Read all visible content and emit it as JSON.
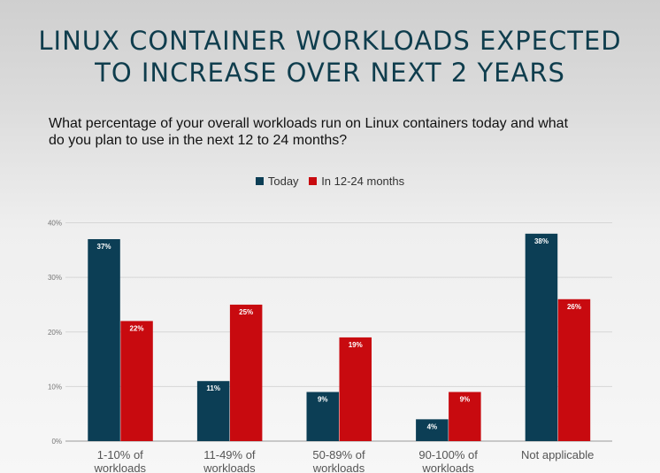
{
  "title": {
    "line1": "LINUX CONTAINER WORKLOADS EXPECTED",
    "line2": "TO INCREASE OVER NEXT 2 YEARS"
  },
  "subtitle": {
    "line1": "What percentage of your overall workloads run on Linux containers today and what",
    "line2": "do you plan to use in the next 12 to 24 months?"
  },
  "colors": {
    "today": "#0c3e55",
    "future": "#c80a0f",
    "title": "#0f3d4d"
  },
  "chart_data": {
    "type": "bar",
    "categories": [
      [
        "1-10% of",
        "workloads"
      ],
      [
        "11-49% of",
        "workloads"
      ],
      [
        "50-89% of",
        "workloads"
      ],
      [
        "90-100% of",
        "workloads"
      ],
      [
        "Not applicable"
      ]
    ],
    "series": [
      {
        "name": "Today",
        "values": [
          37,
          11,
          9,
          4,
          38
        ],
        "labels": [
          "37%",
          "11%",
          "9%",
          "4%",
          "38%"
        ]
      },
      {
        "name": "In 12-24 months",
        "values": [
          22,
          25,
          19,
          9,
          26
        ],
        "labels": [
          "22%",
          "25%",
          "19%",
          "9%",
          "26%"
        ]
      }
    ],
    "yticks": [
      "0%",
      "10%",
      "20%",
      "30%",
      "40%"
    ],
    "ylim": [
      0,
      40
    ],
    "grid": true,
    "legend_position": "top-center"
  }
}
